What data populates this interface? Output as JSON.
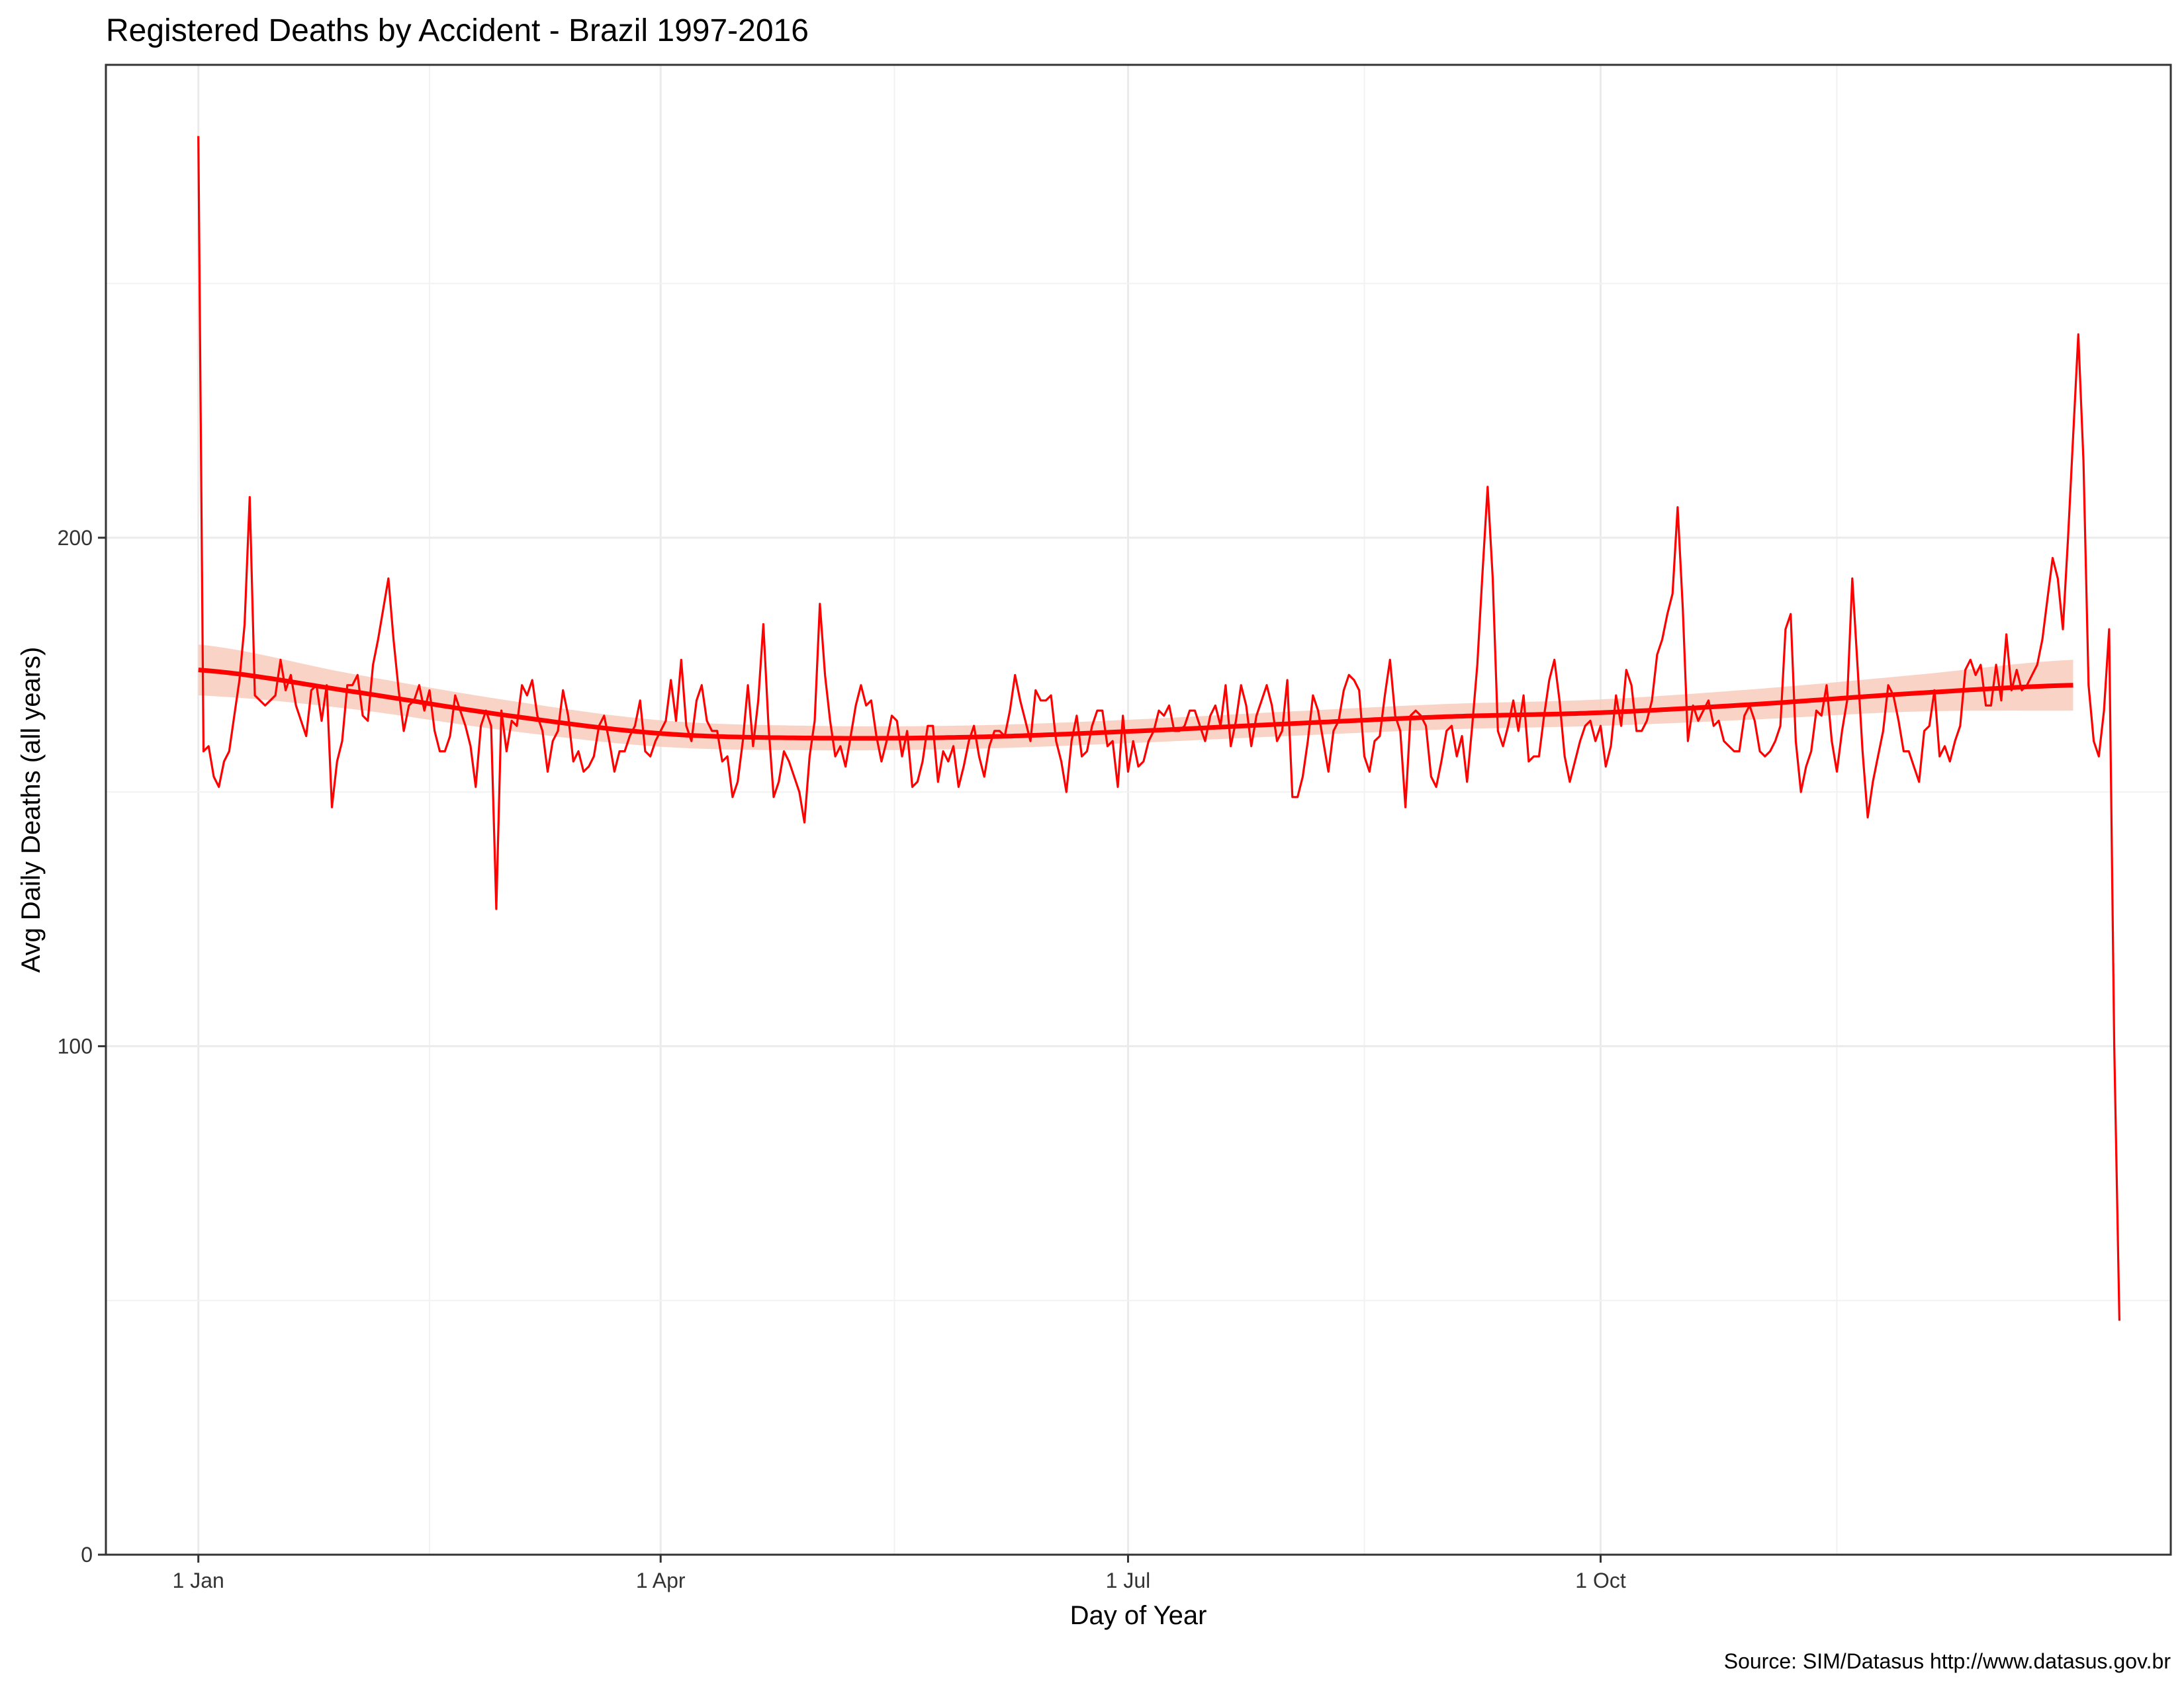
{
  "chart_data": {
    "type": "line",
    "title": "Registered Deaths by Accident  - Brazil 1997-2016",
    "xlabel": "Day of Year",
    "ylabel": "Avg Daily Deaths (all years)",
    "caption": "Source: SIM/Datasus http://www.datasus.gov.br",
    "x_ticks": [
      {
        "label": "1 Jan",
        "day": 1
      },
      {
        "label": "1 Apr",
        "day": 91
      },
      {
        "label": "1 Jul",
        "day": 182
      },
      {
        "label": "1 Oct",
        "day": 274
      }
    ],
    "y_ticks": [
      0,
      100,
      200
    ],
    "xlim": [
      -17,
      385
    ],
    "ylim": [
      0,
      293
    ],
    "grid": true,
    "line_color": "#ff0000",
    "smooth_color": "#ff0000",
    "band_color": "#f8c8b8",
    "series": [
      {
        "values": [
          279,
          158,
          159,
          153,
          151,
          156,
          158,
          165,
          172,
          183,
          208,
          169,
          168,
          167,
          168,
          169,
          176,
          170,
          173,
          167,
          164,
          161,
          170,
          171,
          164,
          171,
          147,
          156,
          160,
          171,
          171,
          173,
          165,
          164,
          175,
          180,
          186,
          192,
          180,
          170,
          162,
          167,
          168,
          171,
          166,
          170,
          162,
          158,
          158,
          161,
          169,
          166,
          163,
          159,
          151,
          163,
          166,
          163,
          127,
          166,
          158,
          164,
          163,
          171,
          169,
          172,
          165,
          162,
          154,
          160,
          162,
          170,
          165,
          156,
          158,
          154,
          155,
          157,
          163,
          165,
          160,
          154,
          158,
          158,
          161,
          163,
          168,
          158,
          157,
          160,
          162,
          164,
          172,
          164,
          176,
          163,
          160,
          168,
          171,
          164,
          162,
          162,
          156,
          157,
          149,
          152,
          160,
          171,
          159,
          168,
          183,
          163,
          149,
          152,
          158,
          156,
          153,
          150,
          144,
          157,
          164,
          187,
          173,
          164,
          157,
          159,
          155,
          161,
          167,
          171,
          167,
          168,
          161,
          156,
          160,
          165,
          164,
          157,
          162,
          151,
          152,
          156,
          163,
          163,
          152,
          158,
          156,
          159,
          151,
          155,
          160,
          163,
          157,
          153,
          159,
          162,
          162,
          161,
          166,
          173,
          168,
          164,
          160,
          170,
          168,
          168,
          169,
          160,
          156,
          150,
          160,
          165,
          157,
          158,
          163,
          166,
          166,
          159,
          160,
          151,
          165,
          154,
          160,
          155,
          156,
          160,
          162,
          166,
          165,
          167,
          162,
          162,
          163,
          166,
          166,
          163,
          160,
          165,
          167,
          163,
          171,
          159,
          164,
          171,
          167,
          159,
          165,
          168,
          171,
          167,
          160,
          162,
          172,
          149,
          149,
          153,
          160,
          169,
          166,
          160,
          154,
          162,
          164,
          170,
          173,
          172,
          170,
          157,
          154,
          160,
          161,
          169,
          176,
          165,
          162,
          147,
          165,
          166,
          165,
          163,
          153,
          151,
          156,
          162,
          163,
          157,
          161,
          152,
          163,
          175,
          193,
          210,
          192,
          162,
          159,
          163,
          168,
          162,
          169,
          156,
          157,
          157,
          165,
          172,
          176,
          168,
          157,
          152,
          156,
          160,
          163,
          164,
          160,
          163,
          155,
          159,
          169,
          163,
          174,
          171,
          162,
          162,
          164,
          168,
          177,
          180,
          185,
          189,
          206,
          186,
          160,
          167,
          164,
          166,
          168,
          163,
          164,
          160,
          159,
          158,
          158,
          165,
          167,
          164,
          158,
          157,
          158,
          160,
          163,
          182,
          185,
          160,
          150,
          155,
          158,
          166,
          165,
          171,
          160,
          154,
          162,
          168,
          192,
          175,
          158,
          145,
          152,
          157,
          162,
          171,
          169,
          164,
          158,
          158,
          155,
          152,
          162,
          163,
          170,
          157,
          159,
          156,
          160,
          163,
          174,
          176,
          173,
          175,
          167,
          167,
          175,
          168,
          181,
          170,
          174,
          170,
          171,
          173,
          175,
          180,
          188,
          196,
          192,
          182,
          200,
          220,
          240,
          215,
          171,
          160,
          157,
          166,
          182,
          100,
          46
        ]
      }
    ],
    "smooth": {
      "days": [
        1,
        30,
        60,
        91,
        121,
        152,
        182,
        213,
        244,
        274,
        305,
        335,
        366
      ],
      "values": [
        174.0,
        169.9,
        165.2,
        161.5,
        160.6,
        160.8,
        161.9,
        163.4,
        164.8,
        165.6,
        167.3,
        169.4,
        171.0
      ],
      "band_halfwidth": [
        5.0,
        3.5,
        3.0,
        2.6,
        2.4,
        2.3,
        2.3,
        2.4,
        2.5,
        2.6,
        3.0,
        3.6,
        5.0
      ]
    }
  }
}
